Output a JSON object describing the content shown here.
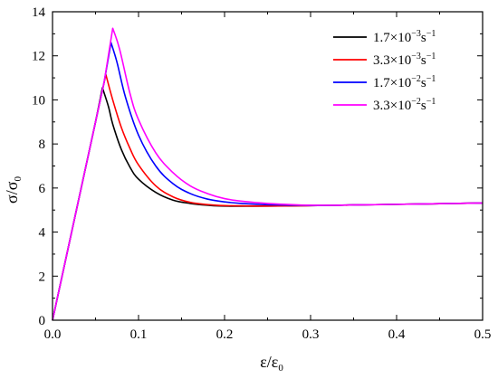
{
  "chart_data": {
    "type": "line",
    "title": "",
    "xlabel": {
      "main": "ε/ε",
      "sub": "0"
    },
    "ylabel": {
      "main": "σ/σ",
      "sub": "0"
    },
    "xlim": [
      0.0,
      0.5
    ],
    "ylim": [
      0,
      14
    ],
    "x_ticks": [
      "0.0",
      "0.1",
      "0.2",
      "0.3",
      "0.4",
      "0.5"
    ],
    "y_ticks": [
      "0",
      "2",
      "4",
      "6",
      "8",
      "10",
      "12",
      "14"
    ],
    "grid": false,
    "legend_position": "top-right",
    "series": [
      {
        "name": "1.7×10−3s−1",
        "legend": {
          "base": "1.7×10",
          "exp": "−3",
          "unit": "s",
          "unit_exp": "−1"
        },
        "color": "#000000",
        "x": [
          0.0,
          0.01,
          0.02,
          0.03,
          0.04,
          0.05,
          0.058,
          0.065,
          0.07,
          0.08,
          0.09,
          0.1,
          0.12,
          0.14,
          0.16,
          0.18,
          0.2,
          0.25,
          0.3,
          0.35,
          0.4,
          0.45,
          0.5
        ],
        "y": [
          0.0,
          1.8,
          3.6,
          5.4,
          7.2,
          9.0,
          10.55,
          9.7,
          8.9,
          7.75,
          6.95,
          6.4,
          5.8,
          5.45,
          5.3,
          5.22,
          5.18,
          5.18,
          5.2,
          5.23,
          5.26,
          5.29,
          5.32
        ]
      },
      {
        "name": "3.3×10−3s−1",
        "legend": {
          "base": "3.3×10",
          "exp": "−3",
          "unit": "s",
          "unit_exp": "−1"
        },
        "color": "#ff0000",
        "x": [
          0.0,
          0.01,
          0.02,
          0.03,
          0.04,
          0.05,
          0.062,
          0.07,
          0.08,
          0.09,
          0.1,
          0.12,
          0.14,
          0.16,
          0.18,
          0.2,
          0.25,
          0.3,
          0.35,
          0.4,
          0.45,
          0.5
        ],
        "y": [
          0.0,
          1.8,
          3.6,
          5.4,
          7.2,
          9.0,
          11.15,
          10.0,
          8.75,
          7.8,
          7.05,
          6.1,
          5.6,
          5.35,
          5.25,
          5.2,
          5.18,
          5.2,
          5.23,
          5.26,
          5.29,
          5.32
        ]
      },
      {
        "name": "1.7×10−2s−1",
        "legend": {
          "base": "1.7×10",
          "exp": "−2",
          "unit": "s",
          "unit_exp": "−1"
        },
        "color": "#0000ff",
        "x": [
          0.0,
          0.01,
          0.02,
          0.03,
          0.04,
          0.05,
          0.06,
          0.068,
          0.075,
          0.085,
          0.1,
          0.12,
          0.14,
          0.16,
          0.18,
          0.2,
          0.22,
          0.25,
          0.3,
          0.35,
          0.4,
          0.45,
          0.5
        ],
        "y": [
          0.0,
          1.8,
          3.6,
          5.4,
          7.2,
          9.0,
          10.8,
          12.6,
          11.7,
          10.1,
          8.4,
          7.0,
          6.2,
          5.75,
          5.5,
          5.37,
          5.3,
          5.24,
          5.21,
          5.23,
          5.26,
          5.29,
          5.32
        ]
      },
      {
        "name": "3.3×10−2s−1",
        "legend": {
          "base": "3.3×10",
          "exp": "−2",
          "unit": "s",
          "unit_exp": "−1"
        },
        "color": "#ff00ff",
        "x": [
          0.0,
          0.01,
          0.02,
          0.03,
          0.04,
          0.05,
          0.06,
          0.07,
          0.078,
          0.09,
          0.1,
          0.12,
          0.14,
          0.16,
          0.18,
          0.2,
          0.22,
          0.25,
          0.3,
          0.35,
          0.4,
          0.45,
          0.5
        ],
        "y": [
          0.0,
          1.8,
          3.6,
          5.4,
          7.2,
          9.0,
          10.8,
          13.25,
          12.3,
          10.3,
          9.1,
          7.6,
          6.7,
          6.1,
          5.75,
          5.52,
          5.4,
          5.3,
          5.22,
          5.23,
          5.26,
          5.29,
          5.32
        ]
      }
    ]
  }
}
